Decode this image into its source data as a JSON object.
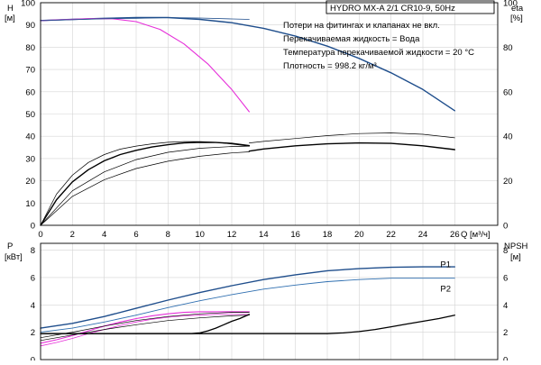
{
  "title": "HYDRO MX-A 2/1 CR10-9, 50Hz",
  "notes": [
    "Потери на фитингах и клапанах не вкл.",
    "Перекачиваемая жидкость = Вода",
    "Температура перекачиваемой жидкости = 20 °C",
    "Плотность = 998.2 кг/м³"
  ],
  "colors": {
    "dark_blue": "#1f4e8c",
    "mid_blue": "#2f6fb0",
    "magenta": "#e62fd9",
    "black": "#000000",
    "grid": "#d4d4d4"
  },
  "chart_data": [
    {
      "type": "line",
      "panel": "top",
      "x_label": "Q [м³/ч]",
      "ylabel_left": [
        "H",
        "[м]"
      ],
      "ylabel_right": [
        "eta",
        "[%]"
      ],
      "xlim": [
        0,
        27
      ],
      "ylim": [
        0,
        100
      ],
      "xticks": [
        0,
        2,
        4,
        6,
        8,
        10,
        12,
        14,
        16,
        18,
        20,
        22,
        24,
        26
      ],
      "yticks_left": [
        0,
        10,
        20,
        30,
        40,
        50,
        60,
        70,
        80,
        90,
        100
      ],
      "yticks_right": [
        0,
        20,
        40,
        60,
        80,
        100
      ],
      "grid": true,
      "series": [
        {
          "color": "dark_blue",
          "width": 1.4,
          "x": [
            0,
            2,
            4,
            6,
            8,
            10,
            12,
            14,
            16,
            18,
            20,
            22,
            24,
            26
          ],
          "y": [
            92,
            92.5,
            93,
            93.3,
            93.3,
            92.5,
            91,
            88.5,
            85,
            80.5,
            75,
            68.5,
            61,
            51.5
          ]
        },
        {
          "color": "magenta",
          "width": 1.1,
          "x": [
            0,
            1.5,
            3,
            4.5,
            6,
            7.5,
            9,
            10.5,
            12,
            13.1
          ],
          "y": [
            92,
            92.4,
            92.8,
            92.8,
            91.5,
            88,
            81.5,
            72.5,
            61,
            51
          ]
        },
        {
          "color": "dark_blue",
          "width": 0.8,
          "x": [
            0,
            2,
            4,
            6,
            8,
            10,
            12,
            13.1
          ],
          "y": [
            92,
            92.4,
            92.8,
            93,
            93.3,
            93.1,
            92.7,
            92.5
          ]
        },
        {
          "color": "black",
          "width": 0.7,
          "x": [
            0,
            1,
            2,
            3,
            4,
            5,
            6,
            7,
            8,
            9,
            10,
            11,
            12,
            13.1
          ],
          "y": [
            0,
            14,
            22.5,
            28.2,
            31.8,
            34.2,
            35.6,
            36.6,
            37.3,
            37.6,
            37.6,
            37.3,
            36.5,
            35.5
          ]
        },
        {
          "color": "black",
          "width": 1.4,
          "x": [
            0,
            1,
            2,
            3,
            4,
            5,
            6,
            7,
            8,
            9,
            10,
            11,
            12,
            13.1
          ],
          "y": [
            0,
            11.5,
            19.5,
            25,
            29,
            31.8,
            33.7,
            35.2,
            36.2,
            37,
            37.3,
            37.2,
            36.8,
            35.8
          ]
        },
        {
          "color": "black",
          "width": 0.7,
          "x": [
            0,
            2,
            4,
            6,
            8,
            10,
            12,
            13.1
          ],
          "y": [
            0,
            15.5,
            24,
            29.5,
            32.8,
            34.6,
            35.4,
            35.6
          ]
        },
        {
          "color": "black",
          "width": 0.7,
          "x": [
            0,
            2,
            4,
            6,
            8,
            10,
            12,
            13.1
          ],
          "y": [
            0,
            13,
            20.5,
            25.5,
            28.8,
            31,
            32.5,
            33
          ]
        },
        {
          "color": "black",
          "width": 0.7,
          "x": [
            13.1,
            14,
            16,
            18,
            20,
            22,
            24,
            26
          ],
          "y": [
            37,
            37.7,
            39,
            40.3,
            41.2,
            41.5,
            40.9,
            39.3
          ]
        },
        {
          "color": "black",
          "width": 1.4,
          "x": [
            13.1,
            14,
            16,
            18,
            20,
            22,
            24,
            26
          ],
          "y": [
            33.3,
            34.3,
            35.7,
            36.6,
            37,
            36.8,
            35.7,
            34
          ]
        }
      ]
    },
    {
      "type": "line",
      "panel": "bottom",
      "ylabel_left": [
        "P",
        "[кВт]"
      ],
      "ylabel_right": [
        "NPSH",
        "[м]"
      ],
      "xlim": [
        0,
        27
      ],
      "ylim": [
        0,
        8.5
      ],
      "yticks_left": [
        0,
        2,
        4,
        6,
        8
      ],
      "yticks_right": [
        0,
        2,
        4,
        6,
        8
      ],
      "grid": true,
      "labels": [
        {
          "text": "P1",
          "x": 25.1,
          "y": 7.0
        },
        {
          "text": "P2",
          "x": 25.1,
          "y": 5.2
        }
      ],
      "series": [
        {
          "name": "P1",
          "color": "dark_blue",
          "width": 1.4,
          "x": [
            0,
            2,
            4,
            6,
            8,
            10,
            12,
            14,
            16,
            18,
            20,
            22,
            24,
            26
          ],
          "y": [
            2.3,
            2.65,
            3.15,
            3.75,
            4.35,
            4.9,
            5.4,
            5.85,
            6.2,
            6.5,
            6.65,
            6.75,
            6.78,
            6.78
          ]
        },
        {
          "name": "P2",
          "color": "mid_blue",
          "width": 0.9,
          "x": [
            0,
            2,
            4,
            6,
            8,
            10,
            12,
            14,
            16,
            18,
            20,
            22,
            24,
            26
          ],
          "y": [
            2.0,
            2.3,
            2.75,
            3.25,
            3.8,
            4.3,
            4.75,
            5.15,
            5.45,
            5.7,
            5.85,
            5.95,
            5.95,
            5.95
          ]
        },
        {
          "color": "magenta",
          "width": 1.1,
          "x": [
            0,
            1,
            2,
            3,
            4,
            5,
            6,
            7,
            8,
            9,
            10,
            11,
            12,
            13.1
          ],
          "y": [
            1.2,
            1.45,
            1.75,
            2.1,
            2.45,
            2.75,
            3.0,
            3.2,
            3.35,
            3.45,
            3.5,
            3.5,
            3.5,
            3.5
          ]
        },
        {
          "color": "magenta",
          "width": 0.8,
          "x": [
            0,
            1,
            2,
            3,
            4,
            5,
            6,
            7,
            8,
            9,
            10,
            11,
            12,
            13.1
          ],
          "y": [
            1.0,
            1.25,
            1.55,
            1.9,
            2.2,
            2.5,
            2.75,
            2.95,
            3.1,
            3.2,
            3.25,
            3.3,
            3.3,
            3.3
          ]
        },
        {
          "color": "black",
          "width": 0.7,
          "x": [
            0,
            2,
            4,
            6,
            8,
            10,
            12,
            13.1
          ],
          "y": [
            1.6,
            2.0,
            2.45,
            2.85,
            3.15,
            3.35,
            3.45,
            3.45
          ]
        },
        {
          "color": "black",
          "width": 0.7,
          "x": [
            0,
            2,
            4,
            6,
            8,
            10,
            12,
            13.1
          ],
          "y": [
            1.4,
            1.8,
            2.2,
            2.55,
            2.85,
            3.05,
            3.2,
            3.25
          ]
        },
        {
          "color": "black",
          "width": 1.3,
          "x": [
            0,
            4,
            8,
            9.5,
            10,
            10.5,
            11,
            11.5,
            12,
            12.5,
            13.1
          ],
          "y": [
            1.9,
            1.9,
            1.9,
            1.9,
            1.95,
            2.1,
            2.3,
            2.55,
            2.8,
            3.0,
            3.3
          ]
        },
        {
          "color": "black",
          "width": 1.3,
          "x": [
            0,
            4,
            8,
            12,
            14,
            16,
            18,
            19,
            20,
            21,
            22,
            23,
            24,
            25,
            26
          ],
          "y": [
            1.9,
            1.9,
            1.9,
            1.9,
            1.9,
            1.9,
            1.9,
            1.95,
            2.05,
            2.2,
            2.4,
            2.6,
            2.8,
            3.0,
            3.25
          ]
        }
      ]
    }
  ]
}
